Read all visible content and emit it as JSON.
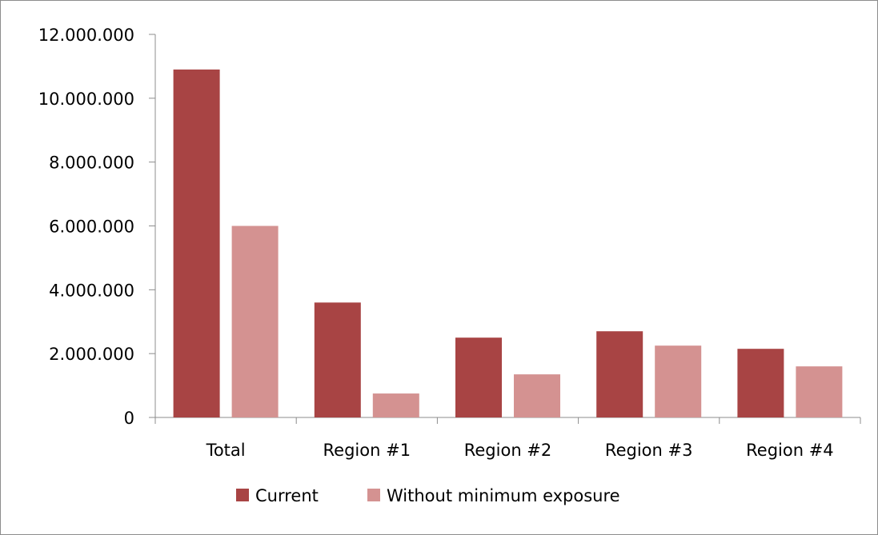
{
  "colors": {
    "current": "#A84444",
    "without_minimum_exposure": "#D49291",
    "axis": "#8C8C8C",
    "frame": "#8C8C8C"
  },
  "chart_data": {
    "type": "bar",
    "title": "",
    "xlabel": "",
    "ylabel": "",
    "categories": [
      "Total",
      "Region #1",
      "Region #2",
      "Region #3",
      "Region #4"
    ],
    "series": [
      {
        "name": "Current",
        "color": "#A84444",
        "values": [
          10900000,
          3600000,
          2500000,
          2700000,
          2150000
        ]
      },
      {
        "name": "Without minimum exposure",
        "color": "#D49291",
        "values": [
          6000000,
          750000,
          1350000,
          2250000,
          1600000
        ]
      }
    ],
    "ylim": [
      0,
      12000000
    ],
    "yticks": [
      0,
      2000000,
      4000000,
      6000000,
      8000000,
      10000000,
      12000000
    ],
    "ytick_labels": [
      "0",
      "2.000.000",
      "4.000.000",
      "6.000.000",
      "8.000.000",
      "10.000.000",
      "12.000.000"
    ],
    "grid": false,
    "legend_position": "bottom"
  }
}
